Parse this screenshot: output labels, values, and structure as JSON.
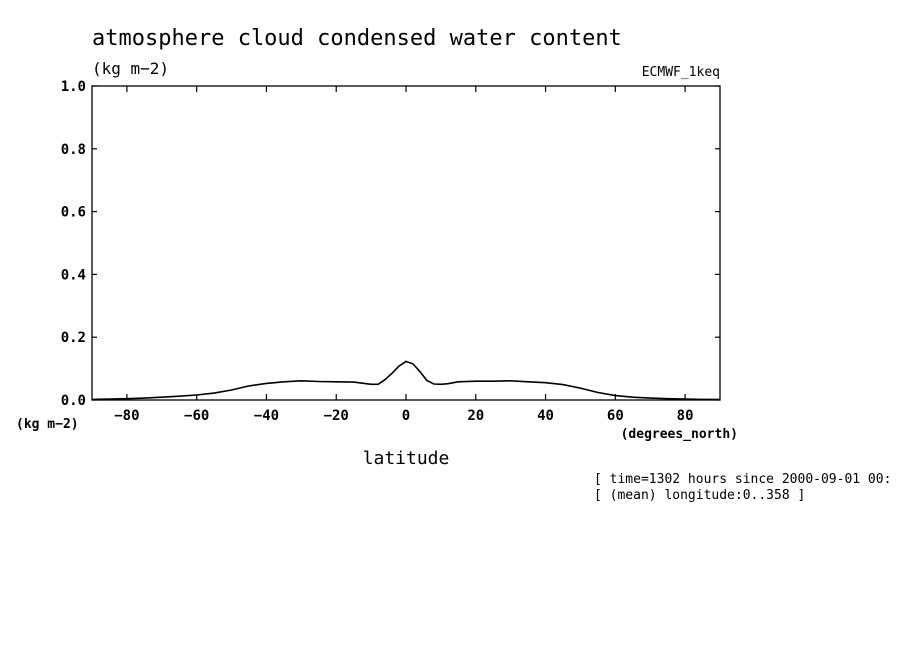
{
  "chart_data": {
    "type": "line",
    "title": "atmosphere cloud condensed water content",
    "units_label": "(kg m−2)",
    "y_units_label": "(kg m−2)",
    "model_label": "ECMWF_1keq",
    "xlabel": "latitude",
    "x_units_label": "(degrees_north)",
    "xlim": [
      -90,
      90
    ],
    "ylim": [
      0,
      1
    ],
    "x_ticks": [
      -80,
      -60,
      -40,
      -20,
      0,
      20,
      40,
      60,
      80
    ],
    "x_tick_labels": [
      "−80",
      "−60",
      "−40",
      "−20",
      "0",
      "20",
      "40",
      "60",
      "80"
    ],
    "y_ticks": [
      0,
      0.2,
      0.4,
      0.6,
      0.8,
      1.0
    ],
    "y_tick_labels": [
      "0.0",
      "0.2",
      "0.4",
      "0.6",
      "0.8",
      "1.0"
    ],
    "grid": false,
    "notes": [
      "[ time=1302 hours since 2000-09-01 00:",
      "[ (mean) longitude:0..358 ]"
    ],
    "series": [
      {
        "x": [
          -90,
          -85,
          -80,
          -75,
          -70,
          -65,
          -60,
          -55,
          -50,
          -45,
          -40,
          -35,
          -30,
          -25,
          -20,
          -15,
          -10,
          -8,
          -6,
          -4,
          -2,
          0,
          2,
          4,
          6,
          8,
          10,
          12,
          15,
          20,
          25,
          30,
          35,
          40,
          45,
          50,
          55,
          60,
          65,
          70,
          75,
          80,
          85,
          90
        ],
        "y": [
          0.002,
          0.003,
          0.004,
          0.006,
          0.009,
          0.012,
          0.016,
          0.022,
          0.032,
          0.045,
          0.053,
          0.058,
          0.061,
          0.059,
          0.058,
          0.057,
          0.05,
          0.05,
          0.065,
          0.085,
          0.108,
          0.123,
          0.115,
          0.09,
          0.062,
          0.051,
          0.05,
          0.052,
          0.058,
          0.06,
          0.06,
          0.061,
          0.058,
          0.055,
          0.049,
          0.038,
          0.024,
          0.014,
          0.009,
          0.006,
          0.004,
          0.003,
          0.002,
          0.002
        ]
      }
    ]
  }
}
